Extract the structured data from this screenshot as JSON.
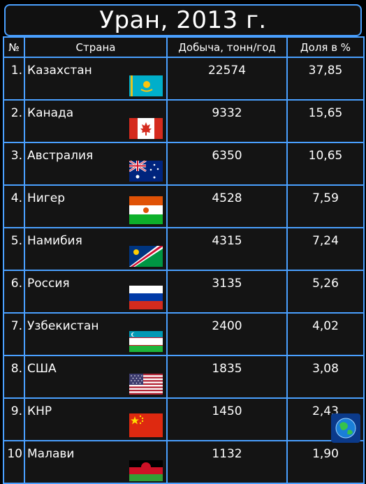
{
  "title": "Уран, 2013 г.",
  "headers": {
    "num": "№",
    "country": "Страна",
    "production": "Добыча, тонн/год",
    "share": "Доля в %"
  },
  "rows": [
    {
      "num": "1.",
      "country": "Казахстан",
      "production": "22574",
      "share": "37,85",
      "flag": "kazakhstan-flag"
    },
    {
      "num": "2.",
      "country": "Канада",
      "production": "9332",
      "share": "15,65",
      "flag": "canada-flag"
    },
    {
      "num": "3.",
      "country": "Австралия",
      "production": "6350",
      "share": "10,65",
      "flag": "australia-flag"
    },
    {
      "num": "4.",
      "country": "Нигер",
      "production": "4528",
      "share": "7,59",
      "flag": "niger-flag"
    },
    {
      "num": "5.",
      "country": "Намибия",
      "production": "4315",
      "share": "7,24",
      "flag": "namibia-flag"
    },
    {
      "num": "6.",
      "country": "Россия",
      "production": "3135",
      "share": "5,26",
      "flag": "russia-flag"
    },
    {
      "num": "7.",
      "country": "Узбекистан",
      "production": "2400",
      "share": "4,02",
      "flag": "uzbekistan-flag"
    },
    {
      "num": "8.",
      "country": "США",
      "production": "1835",
      "share": "3,08",
      "flag": "usa-flag"
    },
    {
      "num": "9.",
      "country": "КНР",
      "production": "1450",
      "share": "2,43",
      "flag": "china-flag"
    },
    {
      "num": "10",
      "country": "Малави",
      "production": "1132",
      "share": "1,90",
      "flag": "malawi-flag"
    }
  ],
  "colors": {
    "grid": "#4aa0ff",
    "background": "#000000",
    "text": "#ffffff"
  }
}
